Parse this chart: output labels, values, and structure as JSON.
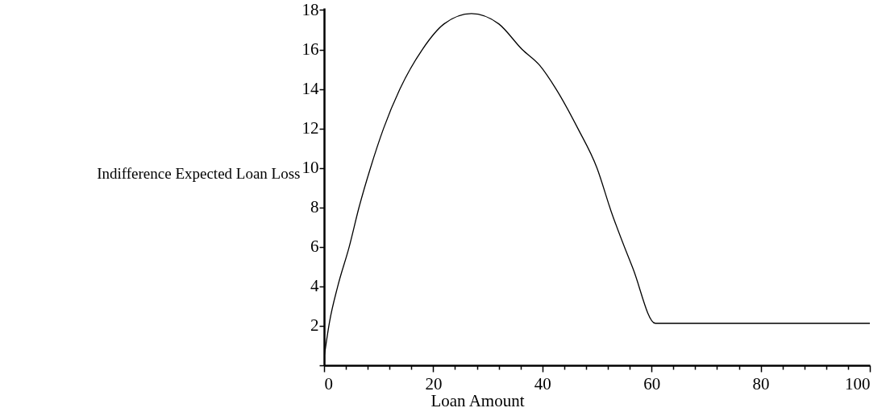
{
  "chart_data": {
    "type": "line",
    "xlabel": "Loan Amount",
    "ylabel": "Indifference Expected Loan Loss",
    "x": [
      0,
      1,
      2.5,
      4.6,
      6.4,
      8.5,
      10.9,
      13.9,
      18,
      22,
      27,
      32,
      36.3,
      39.5,
      42.5,
      46.5,
      50,
      52.6,
      56.6,
      60.7,
      100
    ],
    "series": [
      {
        "color": "#000000",
        "values": [
          0.4,
          2.2,
          4,
          6,
          8,
          10,
          12,
          14,
          16,
          17.3,
          17.82,
          17.3,
          16,
          15.2,
          14,
          12,
          10,
          7.8,
          4.9,
          2.13,
          2.13
        ]
      }
    ],
    "xlim": [
      0,
      100
    ],
    "xticks": [
      0,
      {
        "value": 4,
        "label": null
      },
      {
        "value": 8,
        "label": null
      },
      {
        "value": 12,
        "label": null
      },
      {
        "value": 16,
        "label": null
      },
      20,
      {
        "value": 24,
        "label": null
      },
      {
        "value": 28,
        "label": null
      },
      {
        "value": 32,
        "label": null
      },
      {
        "value": 36,
        "label": null
      },
      40,
      {
        "value": 44,
        "label": null
      },
      {
        "value": 48,
        "label": null
      },
      {
        "value": 52,
        "label": null
      },
      {
        "value": 56,
        "label": null
      },
      60,
      {
        "value": 64,
        "label": null
      },
      {
        "value": 68,
        "label": null
      },
      {
        "value": 72,
        "label": null
      },
      {
        "value": 76,
        "label": null
      },
      80,
      {
        "value": 84,
        "label": null
      },
      {
        "value": 88,
        "label": null
      },
      {
        "value": 92,
        "label": null
      },
      {
        "value": 96,
        "label": null
      },
      100
    ],
    "ylim": [
      0,
      18.1
    ],
    "yticks": [
      {
        "value": 0,
        "label": null
      },
      2,
      4,
      6,
      8,
      10,
      12,
      14,
      16,
      18
    ]
  }
}
